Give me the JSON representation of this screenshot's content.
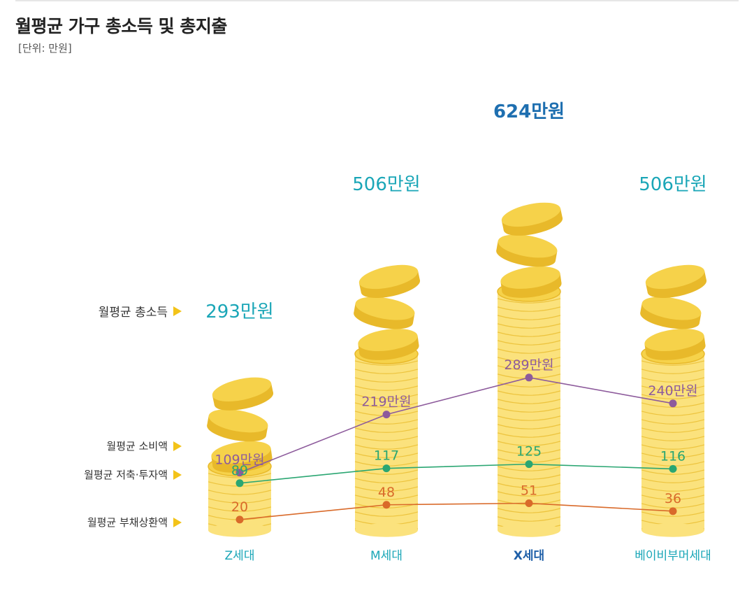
{
  "title": "월평균 가구 총소득 및 총지출",
  "unit": "[단위: 만원]",
  "colors": {
    "coin_fill": "#fbe27d",
    "coin_top": "#f6d24a",
    "coin_edge": "#e8b92a",
    "income_label": "#1aa6b7",
    "income_label_highlight": "#1e6fb0",
    "consumption": "#8d5b9c",
    "savings": "#2aa672",
    "debt": "#d96a2a",
    "x_label": "#1aa6b7",
    "x_label_highlight": "#1e5fa8",
    "legend_arrow": "#f3c319"
  },
  "legend": {
    "income": "월평균 총소득",
    "consumption": "월평균 소비액",
    "savings": "월평균 저축·투자액",
    "debt": "월평균 부채상환액"
  },
  "chart_data": {
    "type": "line",
    "categories": [
      "Z세대",
      "M세대",
      "X세대",
      "베이비부머세대"
    ],
    "highlight_category": "X세대",
    "income": {
      "name": "월평균 총소득",
      "values": [
        293,
        506,
        624,
        506
      ],
      "labels": [
        "293만원",
        "506만원",
        "624만원",
        "506만원"
      ]
    },
    "series": [
      {
        "key": "consumption",
        "name": "월평균 소비액",
        "values": [
          109,
          219,
          289,
          240
        ],
        "labels": [
          "109만원",
          "219만원",
          "289만원",
          "240만원"
        ]
      },
      {
        "key": "savings",
        "name": "월평균 저축·투자액",
        "values": [
          89,
          117,
          125,
          116
        ],
        "labels": [
          "89",
          "117",
          "125",
          "116"
        ]
      },
      {
        "key": "debt",
        "name": "월평균 부채상환액",
        "values": [
          20,
          48,
          51,
          36
        ],
        "labels": [
          "20",
          "48",
          "51",
          "36"
        ]
      }
    ]
  }
}
